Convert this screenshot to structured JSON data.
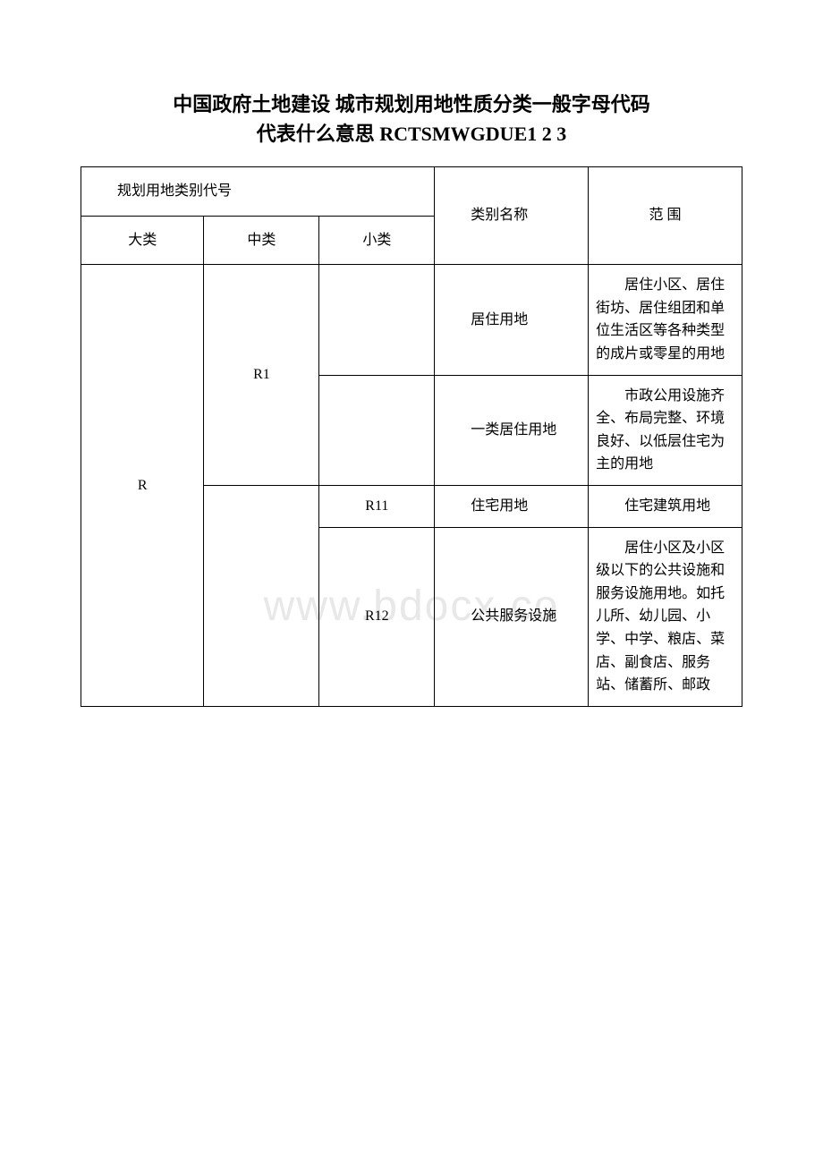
{
  "title_line1": "中国政府土地建设 城市规划用地性质分类一般字母代码",
  "title_line2": "代表什么意思 RCTSMWGDUE1 2 3",
  "watermark": "www.bdocx.co",
  "table": {
    "header": {
      "code_group": "规划用地类别代号",
      "major": "大类",
      "middle": "中类",
      "minor": "小类",
      "name": "类别名称",
      "scope": "范 围"
    },
    "rows": [
      {
        "major": "R",
        "middle": "",
        "minor": "",
        "name": "居住用地",
        "desc": "居住小区、居住街坊、居住组团和单位生活区等各种类型的成片或零星的用地"
      },
      {
        "major": "",
        "middle": "R1",
        "minor": "",
        "name": "一类居住用地",
        "desc": "市政公用设施齐全、布局完整、环境良好、以低层住宅为主的用地"
      },
      {
        "major": "",
        "middle": "",
        "minor": "R11",
        "name": "住宅用地",
        "desc": "住宅建筑用地"
      },
      {
        "major": "",
        "middle": "",
        "minor": "R12",
        "name": "公共服务设施",
        "desc": "居住小区及小区级以下的公共设施和服务设施用地。如托儿所、幼儿园、小学、中学、粮店、菜店、副食店、服务站、储蓄所、邮政"
      }
    ]
  },
  "styles": {
    "background_color": "#ffffff",
    "text_color": "#000000",
    "border_color": "#000000",
    "watermark_color": "#e8e8e8",
    "title_fontsize": 22,
    "cell_fontsize": 16
  }
}
